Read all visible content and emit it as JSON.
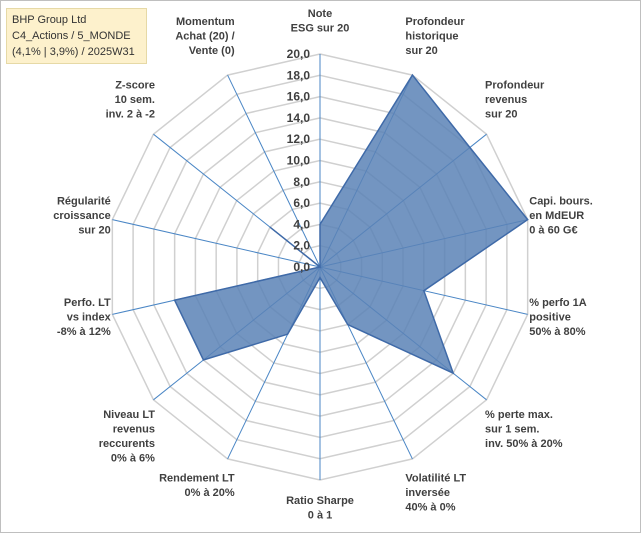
{
  "info": {
    "line1": "BHP Group Ltd",
    "line2": "C4_Actions / 5_MONDE",
    "line3": "(4,1% | 3,9%) / 2025W31"
  },
  "chart_data": {
    "type": "radar",
    "title": "",
    "rmax": 20,
    "ticks": [
      "0,0",
      "2,0",
      "4,0",
      "6,0",
      "8,0",
      "10,0",
      "12,0",
      "14,0",
      "16,0",
      "18,0",
      "20,0"
    ],
    "axes": [
      {
        "label": [
          "Note",
          "ESG sur 20"
        ]
      },
      {
        "label": [
          "Profondeur",
          "historique",
          "sur 20"
        ]
      },
      {
        "label": [
          "Profondeur",
          "revenus",
          "sur 20"
        ]
      },
      {
        "label": [
          "Capi. bours.",
          "en MdEUR",
          "0 à 60 G€"
        ]
      },
      {
        "label": [
          "% perfo 1A",
          "positive",
          "50% à 80%"
        ]
      },
      {
        "label": [
          "% perte max.",
          "sur 1 sem.",
          "inv. 50% à 20%"
        ]
      },
      {
        "label": [
          "Volatilité LT",
          "inversée",
          "40% à 0%"
        ]
      },
      {
        "label": [
          "Ratio Sharpe",
          "0 à 1"
        ]
      },
      {
        "label": [
          "Rendement LT",
          "0% à 20%"
        ]
      },
      {
        "label": [
          "Niveau LT",
          "revenus",
          "reccurents",
          "0% à 6%"
        ]
      },
      {
        "label": [
          "Perfo. LT",
          "vs index",
          "-8% à 12%"
        ]
      },
      {
        "label": [
          "Régularité",
          "croissance",
          "sur 20"
        ]
      },
      {
        "label": [
          "Z-score",
          "10 sem.",
          "inv. 2 à -2"
        ]
      },
      {
        "label": [
          "Momentum",
          "Achat (20) /",
          "Vente (0)"
        ]
      }
    ],
    "series": [
      {
        "values": [
          4,
          20,
          18,
          20,
          10,
          16,
          6,
          1,
          7,
          14,
          14,
          0,
          6,
          0
        ],
        "color": "#5b82b6"
      }
    ]
  }
}
